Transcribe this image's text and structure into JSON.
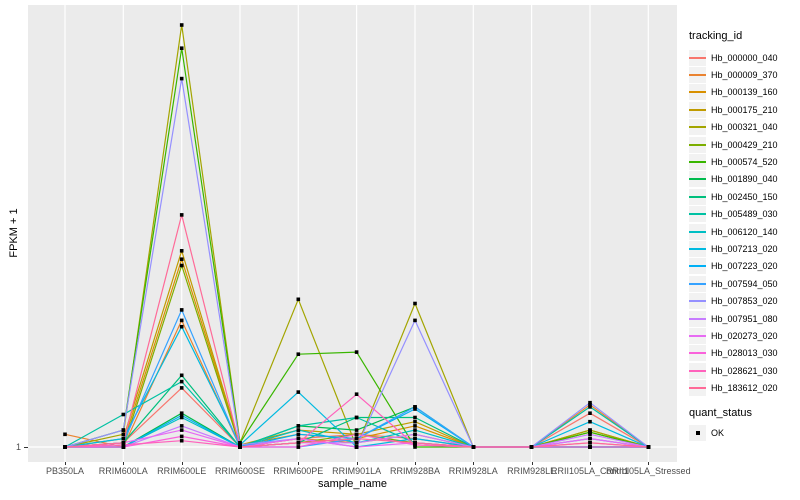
{
  "figure": {
    "background": "#FFFFFF",
    "panel_background": "#EBEBEB",
    "grid_color": "#FFFFFF",
    "tick_color": "#333333",
    "tick_label_color": "#4D4D4D",
    "axis_title_color": "#000000",
    "legend_key_background": "#F2F2F2",
    "point_color": "#000000"
  },
  "chart_data": {
    "type": "line",
    "title": "",
    "xlabel": "sample_name",
    "ylabel": "FPKM + 1",
    "x_tick_labels": [
      "PB350LA",
      "RRIM600LA",
      "RRIM600LE",
      "RRIM600SE",
      "RRIM600PE",
      "RRIM901LA",
      "RRIM928BA",
      "RRIM928LA",
      "RRIM928LE",
      "RRII105LA_Control",
      "RRII105LA_Stressed"
    ],
    "y_tick_labels": [
      "1"
    ],
    "y_axis_note": "Log-style axis: only the value 1 is labeled at the baseline. Series values are relative heights above the y=1 baseline (0 = FPKM+1 of 1, 1 = top of panel), estimated from pixels.",
    "values_unit": "relative_height_0_to_1",
    "grid": "vertical white lines at each sample plus horizontal white line at y=1",
    "legend_position": "right",
    "point_marker": {
      "shape": "square",
      "color": "#000000",
      "meaning": "quant_status OK drawn at every data point"
    },
    "legend": {
      "tracking_id_title": "tracking_id",
      "quant_status_title": "quant_status",
      "quant_status_items": [
        {
          "label": "OK"
        }
      ]
    },
    "series": [
      {
        "name": "Hb_000000_040",
        "color": "#F8766D",
        "values": [
          0,
          0.01,
          0.14,
          0,
          0.02,
          0.03,
          0.02,
          0,
          0,
          0.08,
          0
        ]
      },
      {
        "name": "Hb_000009_370",
        "color": "#EA8331",
        "values": [
          0.03,
          0,
          0.3,
          0,
          0.02,
          0.01,
          0.03,
          0,
          0,
          0.1,
          0
        ]
      },
      {
        "name": "Hb_000139_160",
        "color": "#D89000",
        "values": [
          0,
          0.01,
          0.445,
          0.005,
          0.03,
          0.02,
          0.05,
          0,
          0,
          0.04,
          0
        ]
      },
      {
        "name": "Hb_000175_210",
        "color": "#C09B00",
        "values": [
          0,
          0.02,
          0.465,
          0.005,
          0.04,
          0.03,
          0.06,
          0,
          0,
          0,
          0
        ]
      },
      {
        "name": "Hb_000321_040",
        "color": "#A3A500",
        "values": [
          0,
          0.03,
          1.0,
          0.01,
          0.35,
          0,
          0.34,
          0,
          0,
          0.04,
          0
        ]
      },
      {
        "name": "Hb_000429_210",
        "color": "#7CAE00",
        "values": [
          0,
          0,
          0.43,
          0,
          0.01,
          0.03,
          0.01,
          0,
          0,
          0.035,
          0
        ]
      },
      {
        "name": "Hb_000574_520",
        "color": "#39B600",
        "values": [
          0,
          0.04,
          0.945,
          0.01,
          0.22,
          0.225,
          0,
          0,
          0,
          0.035,
          0
        ]
      },
      {
        "name": "Hb_001890_040",
        "color": "#00BB4E",
        "values": [
          0,
          0,
          0.08,
          0,
          0.05,
          0.04,
          0.095,
          0,
          0,
          0,
          0
        ]
      },
      {
        "name": "Hb_002450_150",
        "color": "#00BF7D",
        "values": [
          0,
          0.01,
          0.17,
          0,
          0.01,
          0.07,
          0.07,
          0,
          0,
          0,
          0
        ]
      },
      {
        "name": "Hb_005489_030",
        "color": "#00C1A3",
        "values": [
          0,
          0.077,
          0.155,
          0,
          0.05,
          0.07,
          0.01,
          0,
          0,
          0.095,
          0
        ]
      },
      {
        "name": "Hb_006120_140",
        "color": "#00BFC4",
        "values": [
          0,
          0,
          0.07,
          0,
          0.04,
          0.01,
          0.04,
          0,
          0,
          0,
          0
        ]
      },
      {
        "name": "Hb_007213_020",
        "color": "#00BAE0",
        "values": [
          0,
          0.02,
          0.285,
          0.005,
          0.13,
          0,
          0.02,
          0,
          0,
          0.06,
          0
        ]
      },
      {
        "name": "Hb_007223_020",
        "color": "#00B0F6",
        "values": [
          0,
          0,
          0.075,
          0,
          0.03,
          0.02,
          0.09,
          0,
          0,
          0,
          0
        ]
      },
      {
        "name": "Hb_007594_050",
        "color": "#35A2FF",
        "values": [
          0,
          0.01,
          0.325,
          0,
          0,
          0.02,
          0.095,
          0,
          0,
          0.02,
          0
        ]
      },
      {
        "name": "Hb_007853_020",
        "color": "#9590FF",
        "values": [
          0,
          0.04,
          0.873,
          0.005,
          0.02,
          0,
          0.3,
          0,
          0,
          0.105,
          0
        ]
      },
      {
        "name": "Hb_007951_080",
        "color": "#C77CFF",
        "values": [
          0,
          0,
          0.05,
          0,
          0.01,
          0.01,
          0.03,
          0,
          0,
          0.03,
          0
        ]
      },
      {
        "name": "Hb_020273_020",
        "color": "#E76BF3",
        "values": [
          0,
          0.01,
          0.04,
          0,
          0.02,
          0,
          0.01,
          0,
          0,
          0.02,
          0
        ]
      },
      {
        "name": "Hb_028013_030",
        "color": "#FA62DB",
        "values": [
          0,
          0,
          0.025,
          0,
          0,
          0.03,
          0.005,
          0,
          0,
          0,
          0
        ]
      },
      {
        "name": "Hb_028621_030",
        "color": "#FF62BC",
        "values": [
          0,
          0.005,
          0.015,
          0,
          0.01,
          0.125,
          0.005,
          0,
          0,
          0.01,
          0
        ]
      },
      {
        "name": "Hb_183612_020",
        "color": "#FF6A98",
        "values": [
          0,
          0.01,
          0.55,
          0,
          0.01,
          0.02,
          0.01,
          0,
          0,
          0.01,
          0
        ]
      }
    ]
  }
}
